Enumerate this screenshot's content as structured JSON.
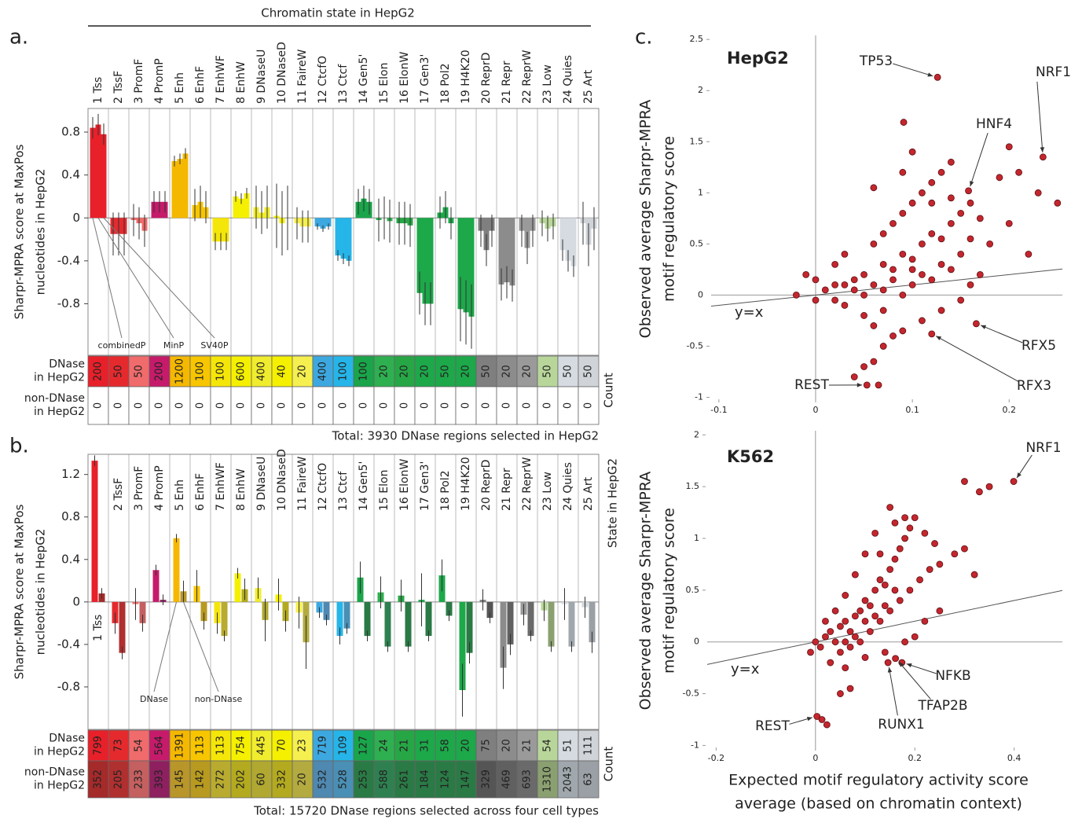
{
  "chart_data": [
    {
      "type": "bar",
      "panel": "a.",
      "title": "Chromatin state in HepG2",
      "y_label": [
        "Sharpr-MPRA score at MaxPos",
        "nucleotides in HepG2"
      ],
      "categories": [
        "1 Tss",
        "2 TssF",
        "3 PromF",
        "4 PromP",
        "5 Enh",
        "6 EnhF",
        "7 EnhWF",
        "8 EnhW",
        "9 DNaseU",
        "10 DNaseD",
        "11 FaireW",
        "12 CtcfO",
        "13 Ctcf",
        "14 Gen5'",
        "15 Elon",
        "16 ElonW",
        "17 Gen3'",
        "18 Pol2",
        "19 H4K20",
        "20 ReprD",
        "21 Repr",
        "22 ReprW",
        "23 Low",
        "24 Quies",
        "25 Art"
      ],
      "colors": [
        "#e8202a",
        "#e52a2e",
        "#f06b6b",
        "#c51b6a",
        "#f5b800",
        "#f7c600",
        "#f5e60a",
        "#f5f000",
        "#f0ec2e",
        "#f5f000",
        "#f5ef50",
        "#3da8e0",
        "#26b5e8",
        "#1aa54a",
        "#2eb050",
        "#27a646",
        "#1da84a",
        "#1da84a",
        "#1da84a",
        "#7f7f7f",
        "#8c8c8c",
        "#9a9a9a",
        "#b8d69a",
        "#d5dbe0",
        "#d0d4d8"
      ],
      "series": [
        {
          "name": "combinedP",
          "values": [
            0.84,
            -0.15,
            -0.02,
            0.15,
            0.53,
            0.12,
            -0.22,
            0.2,
            0.1,
            0.02,
            -0.05,
            -0.08,
            -0.35,
            0.15,
            -0.02,
            -0.05,
            -0.7,
            0.05,
            -0.85,
            -0.12,
            -0.62,
            -0.12,
            -0.05,
            -0.3,
            -0.05
          ],
          "errors": [
            0.1,
            0.2,
            0.15,
            0.1,
            0.05,
            0.15,
            0.08,
            0.05,
            0.2,
            0.3,
            0.15,
            0.03,
            0.05,
            0.12,
            0.2,
            0.2,
            0.2,
            0.15,
            0.3,
            0.15,
            0.15,
            0.15,
            0.12,
            0.1,
            0.2
          ]
        },
        {
          "name": "MinP",
          "values": [
            0.87,
            -0.15,
            -0.05,
            0.15,
            0.55,
            0.15,
            -0.22,
            0.18,
            0.05,
            -0.05,
            -0.08,
            -0.1,
            -0.38,
            0.18,
            0.0,
            -0.05,
            -0.8,
            0.1,
            -0.88,
            -0.3,
            -0.6,
            -0.28,
            -0.1,
            -0.4,
            -0.25
          ],
          "errors": [
            0.1,
            0.2,
            0.15,
            0.1,
            0.05,
            0.15,
            0.08,
            0.05,
            0.2,
            0.3,
            0.15,
            0.03,
            0.05,
            0.12,
            0.2,
            0.2,
            0.2,
            0.15,
            0.3,
            0.15,
            0.15,
            0.15,
            0.12,
            0.1,
            0.2
          ]
        },
        {
          "name": "SV40P",
          "values": [
            0.78,
            -0.15,
            -0.12,
            0.15,
            0.6,
            0.1,
            -0.22,
            0.23,
            0.1,
            0.0,
            -0.08,
            -0.08,
            -0.4,
            0.15,
            -0.03,
            -0.07,
            -0.8,
            -0.05,
            -0.92,
            -0.12,
            -0.63,
            -0.12,
            -0.08,
            -0.45,
            -0.1
          ],
          "errors": [
            0.1,
            0.2,
            0.15,
            0.1,
            0.05,
            0.15,
            0.08,
            0.05,
            0.2,
            0.3,
            0.15,
            0.03,
            0.05,
            0.12,
            0.2,
            0.2,
            0.2,
            0.15,
            0.3,
            0.15,
            0.15,
            0.15,
            0.12,
            0.1,
            0.2
          ]
        }
      ],
      "ylim": [
        -1.28,
        1.02
      ],
      "yticks": [
        -0.8,
        -0.4,
        0,
        0.4,
        0.8
      ],
      "table": {
        "row_labels": [
          [
            "DNase",
            "in HepG2"
          ],
          [
            "non-DNase",
            "in HepG2"
          ]
        ],
        "label": "Count",
        "rows": [
          [
            200,
            50,
            50,
            200,
            1200,
            100,
            100,
            600,
            400,
            40,
            20,
            400,
            100,
            100,
            20,
            20,
            20,
            50,
            20,
            50,
            20,
            20,
            50,
            50,
            50
          ],
          [
            0,
            0,
            0,
            0,
            0,
            0,
            0,
            0,
            0,
            0,
            0,
            0,
            0,
            0,
            0,
            0,
            0,
            0,
            0,
            0,
            0,
            0,
            0,
            0,
            0
          ]
        ]
      },
      "total": "Total: 3930 DNase regions selected in HepG2"
    },
    {
      "type": "bar",
      "panel": "b.",
      "side_label": "State in HepG2",
      "y_label": [
        "Sharpr-MPRA score at MaxPos",
        "nucleotides in HepG2"
      ],
      "categories": [
        "1 Tss",
        "2 TssF",
        "3 PromF",
        "4 PromP",
        "5 Enh",
        "6 EnhF",
        "7 EnhWF",
        "8 EnhW",
        "9 DNaseU",
        "10 DNaseD",
        "11 FaireW",
        "12 CtcfO",
        "13 Ctcf",
        "14 Gen5'",
        "15 Elon",
        "16 ElonW",
        "17 Gen3'",
        "18 Pol2",
        "19 H4K20",
        "20 ReprD",
        "21 Repr",
        "22 ReprW",
        "23 Low",
        "24 Quies",
        "25 Art"
      ],
      "colors": [
        "#e8202a",
        "#e52a2e",
        "#f06b6b",
        "#c51b6a",
        "#f5b800",
        "#f7c600",
        "#f5e60a",
        "#f5f000",
        "#f0ec2e",
        "#f5f000",
        "#f5ef50",
        "#3da8e0",
        "#26b5e8",
        "#1aa54a",
        "#2eb050",
        "#27a646",
        "#1da84a",
        "#1da84a",
        "#1da84a",
        "#7f7f7f",
        "#8c8c8c",
        "#9a9a9a",
        "#b8d69a",
        "#d5dbe0",
        "#d0d4d8"
      ],
      "series": [
        {
          "name": "DNase",
          "values": [
            1.33,
            -0.2,
            -0.02,
            0.3,
            0.6,
            0.15,
            -0.2,
            0.27,
            0.13,
            0.07,
            -0.1,
            -0.1,
            -0.32,
            0.23,
            0.09,
            0.06,
            0.02,
            0.25,
            -0.83,
            0.02,
            -0.62,
            -0.12,
            -0.08,
            -0.02,
            -0.05
          ],
          "errors": [
            0.05,
            0.1,
            0.15,
            0.05,
            0.04,
            0.15,
            0.1,
            0.05,
            0.1,
            0.15,
            0.15,
            0.05,
            0.08,
            0.15,
            0.15,
            0.15,
            0.25,
            0.15,
            0.25,
            0.1,
            0.2,
            0.1,
            0.1,
            0.15,
            0.1
          ]
        },
        {
          "name": "non-DNase",
          "colors": [
            "#a52a2a",
            "#b03030",
            "#c46060",
            "#8e2060",
            "#b8962a",
            "#b89a20",
            "#b8ab30",
            "#b3aa20",
            "#b0a830",
            "#b3aa20",
            "#b3ab40",
            "#4f88b0",
            "#4a8fb5",
            "#2a7a45",
            "#2f8050",
            "#2a7a45",
            "#2a7a45",
            "#2a7a45",
            "#2a7a45",
            "#555555",
            "#606060",
            "#6a6a6a",
            "#8aa070",
            "#a0a8ae",
            "#9aa0a5"
          ],
          "values": [
            0.08,
            -0.48,
            -0.2,
            0.02,
            0.1,
            -0.18,
            -0.32,
            0.12,
            -0.17,
            -0.18,
            -0.38,
            -0.17,
            -0.25,
            -0.32,
            -0.42,
            -0.42,
            -0.32,
            -0.13,
            -0.48,
            -0.15,
            -0.4,
            -0.32,
            -0.42,
            -0.42,
            -0.38
          ],
          "errors": [
            0.05,
            0.06,
            0.08,
            0.05,
            0.1,
            0.08,
            0.05,
            0.1,
            0.2,
            0.1,
            0.25,
            0.05,
            0.05,
            0.05,
            0.05,
            0.05,
            0.05,
            0.05,
            0.1,
            0.05,
            0.1,
            0.05,
            0.05,
            0.05,
            0.1
          ]
        }
      ],
      "ylim": [
        -1.2,
        1.39
      ],
      "yticks": [
        -0.8,
        -0.4,
        0,
        0.4,
        0.8,
        1.2
      ],
      "table": {
        "row_labels": [
          [
            "DNase",
            "in HepG2"
          ],
          [
            "non-DNase",
            "in HepG2"
          ]
        ],
        "label": "Count",
        "rows": [
          [
            799,
            73,
            54,
            564,
            1391,
            113,
            113,
            754,
            445,
            70,
            23,
            719,
            109,
            127,
            24,
            21,
            31,
            58,
            20,
            75,
            20,
            21,
            54,
            51,
            111
          ],
          [
            352,
            205,
            233,
            393,
            145,
            142,
            272,
            202,
            60,
            332,
            20,
            532,
            528,
            253,
            588,
            261,
            184,
            124,
            147,
            329,
            469,
            693,
            1310,
            2043,
            63
          ]
        ]
      },
      "total": "Total: 15720 DNase regions selected across four cell types"
    },
    {
      "type": "scatter",
      "panel": "c.",
      "title": "HepG2",
      "color": "#c4262e",
      "ref_line_label": "y=x",
      "y_label": [
        "Observed average Sharpr-MPRA",
        "motif regulatory score"
      ],
      "x": [
        -0.02,
        0.0,
        0.01,
        0.02,
        0.03,
        0.04,
        0.05,
        0.06,
        0.07,
        0.08,
        0.09,
        0.1,
        0.11,
        0.12,
        0.13,
        0.14,
        0.15,
        0.16,
        0.05,
        0.06,
        0.07,
        0.08,
        0.09,
        0.1,
        0.11,
        0.12,
        0.13,
        0.14,
        0.15,
        0.04,
        0.03,
        0.02,
        0.06,
        0.07,
        0.08,
        0.09,
        0.1,
        0.11,
        0.12,
        0.13,
        0.14,
        0.1,
        0.09,
        0.06,
        0.2,
        0.19,
        0.21,
        0.23,
        0.25,
        0.2,
        0.22,
        0.18,
        0.17,
        0.16,
        0.15,
        0.13,
        0.11,
        0.09,
        0.07,
        0.06,
        0.05,
        0.04,
        -0.01,
        0.0,
        0.02,
        0.03,
        0.12,
        0.16,
        0.14,
        0.17,
        0.08,
        0.1,
        0.05,
        0.07,
        0.126,
        0.091,
        0.235,
        0.158,
        0.166,
        0.12,
        0.053,
        0.065
      ],
      "y": [
        0.0,
        -0.05,
        0.05,
        0.1,
        -0.1,
        0.15,
        0.2,
        0.1,
        0.3,
        0.25,
        0.4,
        0.35,
        0.5,
        0.6,
        0.55,
        0.7,
        0.8,
        0.9,
        -0.2,
        -0.3,
        -0.15,
        -0.4,
        0.0,
        0.1,
        0.2,
        0.15,
        0.3,
        0.25,
        0.4,
        0.05,
        0.1,
        -0.05,
        0.5,
        0.6,
        0.7,
        0.8,
        0.9,
        1.0,
        1.1,
        1.2,
        1.3,
        1.4,
        1.2,
        1.05,
        1.45,
        1.15,
        1.2,
        1.0,
        0.9,
        0.7,
        0.4,
        0.5,
        0.2,
        0.1,
        -0.05,
        -0.15,
        -0.25,
        -0.35,
        -0.5,
        -0.65,
        -0.7,
        -0.8,
        0.2,
        0.15,
        0.3,
        0.4,
        0.9,
        0.55,
        0.95,
        0.75,
        0.15,
        0.25,
        0.0,
        0.05,
        2.13,
        1.69,
        1.35,
        1.02,
        -0.28,
        -0.38,
        -0.88,
        -0.88
      ],
      "annotations": [
        {
          "text": "TP53",
          "x": 0.126,
          "y": 2.13
        },
        {
          "text": "NRF1",
          "x": 0.235,
          "y": 1.35
        },
        {
          "text": "HNF4",
          "x": 0.158,
          "y": 1.02
        },
        {
          "text": "RFX5",
          "x": 0.166,
          "y": -0.28
        },
        {
          "text": "RFX3",
          "x": 0.12,
          "y": -0.38
        },
        {
          "text": "REST",
          "x": 0.053,
          "y": -0.88
        }
      ],
      "xlim": [
        -0.108,
        0.255
      ],
      "ylim": [
        -1.05,
        2.54
      ],
      "xticks": [
        -0.1,
        0,
        0.1,
        0.2
      ],
      "yticks": [
        -1,
        -0.5,
        0,
        0.5,
        1,
        1.5,
        2,
        2.5
      ]
    },
    {
      "type": "scatter",
      "title": "K562",
      "color": "#c4262e",
      "ref_line_label": "y=x",
      "y_label": [
        "Observed average Sharpr-MPRA",
        "motif regulatory score"
      ],
      "x_label": [
        "Expected motif regulatory activity score",
        "average (based on chromatin context)"
      ],
      "x": [
        0.0,
        0.01,
        0.02,
        0.03,
        0.04,
        0.05,
        0.06,
        0.07,
        0.08,
        0.09,
        0.1,
        0.11,
        0.12,
        0.13,
        0.14,
        0.15,
        0.16,
        0.17,
        0.18,
        0.19,
        0.2,
        0.15,
        0.12,
        0.1,
        0.08,
        0.06,
        0.04,
        0.02,
        0.05,
        0.07,
        0.09,
        0.11,
        0.13,
        0.15,
        0.17,
        0.19,
        0.21,
        0.23,
        0.25,
        0.28,
        0.3,
        0.32,
        0.25,
        0.22,
        0.2,
        0.18,
        0.14,
        0.1,
        -0.01,
        0.03,
        0.06,
        0.07,
        0.05,
        0.22,
        0.24,
        0.18,
        0.16,
        0.14,
        0.12,
        0.1,
        0.08,
        0.06,
        0.13,
        0.3,
        0.33,
        0.35,
        0.16,
        0.399,
        0.174,
        0.161,
        0.146,
        0.003,
        0.013,
        0.023
      ],
      "y": [
        0.0,
        -0.05,
        0.05,
        0.1,
        0.0,
        0.15,
        0.2,
        0.1,
        0.25,
        0.3,
        0.4,
        0.35,
        0.5,
        0.6,
        0.55,
        0.7,
        0.8,
        0.9,
        1.0,
        1.1,
        1.2,
        1.3,
        1.05,
        0.85,
        0.65,
        0.45,
        0.3,
        0.2,
        -0.1,
        -0.05,
        0.0,
        0.1,
        0.2,
        0.3,
        0.4,
        0.5,
        0.6,
        0.7,
        0.75,
        0.85,
        0.9,
        0.65,
        0.3,
        0.2,
        0.05,
        0.0,
        -0.1,
        -0.15,
        -0.1,
        -0.2,
        -0.25,
        -0.45,
        -0.5,
        1.05,
        0.95,
        1.2,
        0.5,
        0.35,
        0.25,
        0.2,
        0.05,
        0.0,
        0.85,
        1.55,
        1.45,
        1.5,
        1.15,
        1.55,
        -0.2,
        -0.16,
        -0.2,
        -0.72,
        -0.75,
        -0.8
      ],
      "annotations": [
        {
          "text": "NRF1",
          "x": 0.399,
          "y": 1.55
        },
        {
          "text": "NFKB",
          "x": 0.174,
          "y": -0.2
        },
        {
          "text": "TFAP2B",
          "x": 0.161,
          "y": -0.16
        },
        {
          "text": "RUNX1",
          "x": 0.146,
          "y": -0.2
        },
        {
          "text": "REST",
          "x": 0.003,
          "y": -0.72
        }
      ],
      "xlim": [
        -0.218,
        0.497
      ],
      "ylim": [
        -1.05,
        2.04
      ],
      "xticks": [
        -0.2,
        0,
        0.2,
        0.4
      ],
      "yticks": [
        -1,
        -0.5,
        0,
        0.5,
        1,
        1.5,
        2
      ]
    }
  ]
}
